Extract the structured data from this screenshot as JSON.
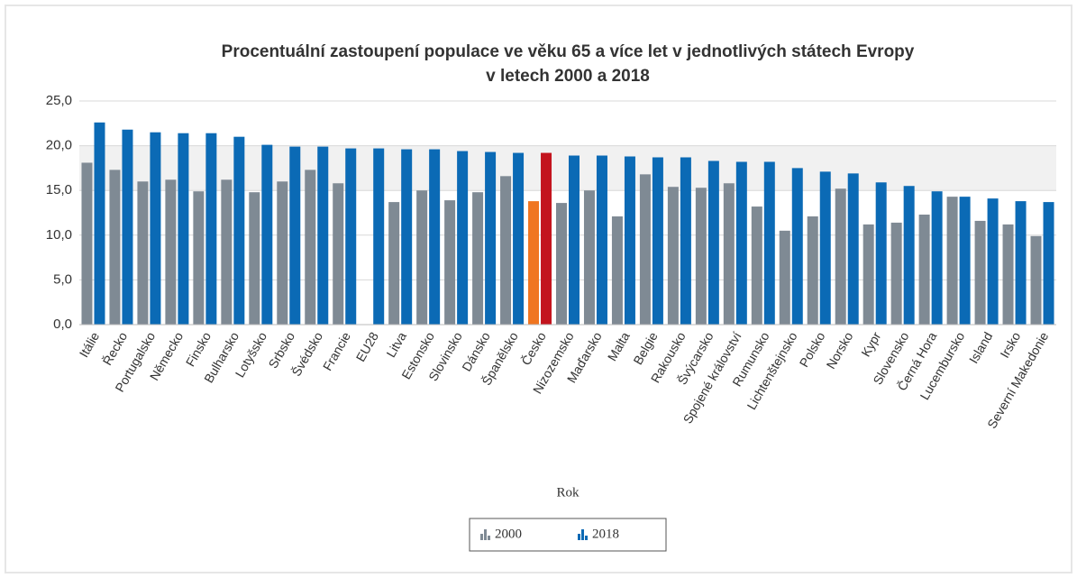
{
  "chart_data": {
    "type": "bar",
    "title_lines": [
      "Procentuální zastoupení populace ve věku 65 a více let v jednotlivých státech Evropy",
      "v letech 2000 a 2018"
    ],
    "x_label": "Rok",
    "categories": [
      "Itálie",
      "Řecko",
      "Portugalsko",
      "Německo",
      "Finsko",
      "Bulharsko",
      "Lotyšsko",
      "Srbsko",
      "Švédsko",
      "Francie",
      "EU28",
      "Litva",
      "Estonsko",
      "Slovinsko",
      "Dánsko",
      "Španělsko",
      "Česko",
      "Nizozemsko",
      "Maďarsko",
      "Malta",
      "Belgie",
      "Rakousko",
      "Švýcarsko",
      "Spojené království",
      "Rumunsko",
      "Lichtenštejnsko",
      "Polsko",
      "Norsko",
      "Kypr",
      "Slovensko",
      "Černá Hora",
      "Lucembursko",
      "Island",
      "Irsko",
      "Severní Makedonie"
    ],
    "series": [
      {
        "name": "2000",
        "color": "#7f8a94",
        "highlight_color": "#f07621",
        "values": [
          18.1,
          17.3,
          16.0,
          16.2,
          14.9,
          16.2,
          14.8,
          16.0,
          17.3,
          15.8,
          null,
          13.7,
          15.0,
          13.9,
          14.8,
          16.6,
          13.8,
          13.6,
          15.0,
          12.1,
          16.8,
          15.4,
          15.3,
          15.8,
          13.2,
          10.5,
          12.1,
          15.2,
          11.2,
          11.4,
          12.3,
          14.3,
          11.6,
          11.2,
          9.9
        ]
      },
      {
        "name": "2018",
        "color": "#0b6ab5",
        "highlight_color": "#c3141e",
        "values": [
          22.6,
          21.8,
          21.5,
          21.4,
          21.4,
          21.0,
          20.1,
          19.9,
          19.9,
          19.7,
          19.7,
          19.6,
          19.6,
          19.4,
          19.3,
          19.2,
          19.2,
          18.9,
          18.9,
          18.8,
          18.7,
          18.7,
          18.3,
          18.2,
          18.2,
          17.5,
          17.1,
          16.9,
          15.9,
          15.5,
          14.9,
          14.3,
          14.1,
          13.8,
          13.7
        ]
      }
    ],
    "highlight": "Česko",
    "ylim": [
      0,
      25
    ],
    "yticks": [
      {
        "value": 0,
        "label": "0,0"
      },
      {
        "value": 5,
        "label": "5,0"
      },
      {
        "value": 10,
        "label": "10,0"
      },
      {
        "value": 15,
        "label": "15,0"
      },
      {
        "value": 20,
        "label": "20,0"
      },
      {
        "value": 25,
        "label": "25,0"
      }
    ],
    "grid": true,
    "band": {
      "from": 15,
      "to": 20,
      "color": "#f1f1f1"
    },
    "legend": "bottom"
  }
}
